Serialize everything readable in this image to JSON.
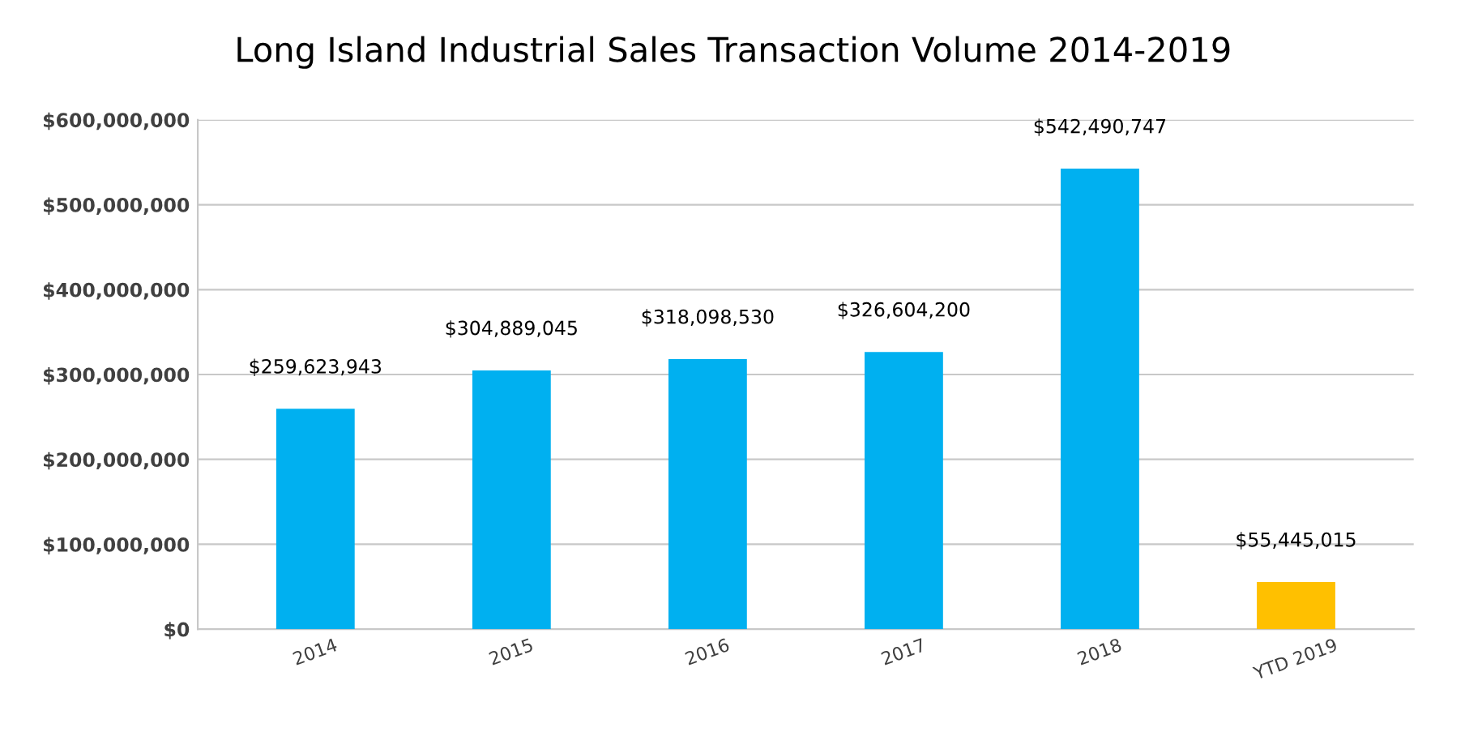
{
  "chart_data": {
    "type": "bar",
    "title": "Long Island Industrial Sales Transaction Volume 2014-2019",
    "categories": [
      "2014",
      "2015",
      "2016",
      "2017",
      "2018",
      "YTD 2019"
    ],
    "values": [
      259623943,
      304889045,
      318098530,
      326604200,
      542490747,
      55445015
    ],
    "colors": [
      "#00b0f0",
      "#00b0f0",
      "#00b0f0",
      "#00b0f0",
      "#00b0f0",
      "#ffc000"
    ],
    "value_labels": [
      "$259,623,943",
      "$304,889,045",
      "$318,098,530",
      "$326,604,200",
      "$542,490,747",
      "$55,445,015"
    ],
    "ylim": [
      0,
      600000000
    ],
    "yticks": [
      {
        "value": 0,
        "label": "$0"
      },
      {
        "value": 100000000,
        "label": "$100,000,000"
      },
      {
        "value": 200000000,
        "label": "$200,000,000"
      },
      {
        "value": 300000000,
        "label": "$300,000,000"
      },
      {
        "value": 400000000,
        "label": "$400,000,000"
      },
      {
        "value": 500000000,
        "label": "$500,000,000"
      },
      {
        "value": 600000000,
        "label": "$600,000,000"
      }
    ],
    "grid": "y",
    "legend": false
  }
}
